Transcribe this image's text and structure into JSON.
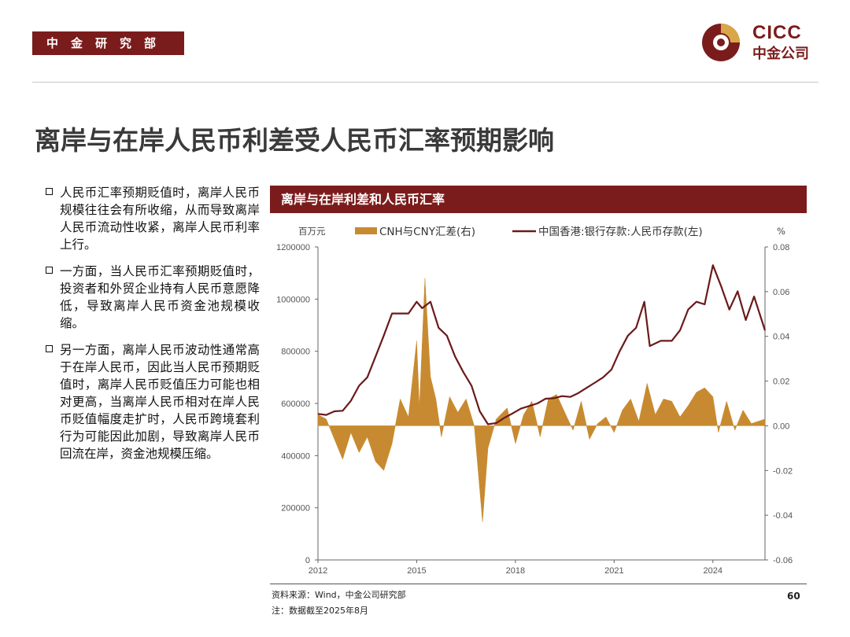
{
  "header": {
    "dept": "中金研究部",
    "logo_en": "CICC",
    "logo_cn": "中金公司"
  },
  "title": "离岸与在岸人民币利差受人民币汇率预期影响",
  "bullets": [
    "人民币汇率预期贬值时，离岸人民币规模往往会有所收缩，从而导致离岸人民币流动性收紧，离岸人民币利率上行。",
    "一方面，当人民币汇率预期贬值时，投资者和外贸企业持有人民币意愿降低，导致离岸人民币资金池规模收缩。",
    "另一方面，离岸人民币波动性通常高于在岸人民币，因此当人民币预期贬值时，离岸人民币贬值压力可能也相对更高，当离岸人民币相对在岸人民币贬值幅度走扩时，人民币跨境套利行为可能因此加剧，导致离岸人民币回流在岸，资金池规模压缩。"
  ],
  "chart_header": "离岸与在岸利差和人民币汇率",
  "colors": {
    "brand": "#7b1c1c",
    "line": "#6b1a1a",
    "area": "#c88a30"
  },
  "chart_data": {
    "type": "line",
    "x_type": "date",
    "left_unit": "百万元",
    "right_unit": "%",
    "y_left": {
      "ticks": [
        "0",
        "200000",
        "400000",
        "600000",
        "800000",
        "1000000",
        "1200000"
      ],
      "range": [
        0,
        1200000
      ]
    },
    "y_right": {
      "ticks": [
        "-0.06",
        "-0.04",
        "-0.02",
        "0.00",
        "0.02",
        "0.04",
        "0.06",
        "0.08"
      ],
      "range": [
        -0.06,
        0.08
      ]
    },
    "x": {
      "ticks": [
        "2012",
        "2015",
        "2018",
        "2021",
        "2024"
      ],
      "range": [
        "2012-01",
        "2025-08"
      ]
    },
    "grid": false,
    "legend": "top",
    "series": [
      {
        "name": "CNH与CNY汇差(右)",
        "kind": "area",
        "axis": "right",
        "points": [
          [
            "2012-01",
            0.005
          ],
          [
            "2012-04",
            0.003
          ],
          [
            "2012-07",
            -0.006
          ],
          [
            "2012-10",
            -0.015
          ],
          [
            "2013-01",
            -0.003
          ],
          [
            "2013-04",
            -0.012
          ],
          [
            "2013-07",
            -0.005
          ],
          [
            "2013-10",
            -0.016
          ],
          [
            "2014-01",
            -0.02
          ],
          [
            "2014-04",
            -0.008
          ],
          [
            "2014-07",
            0.012
          ],
          [
            "2014-10",
            0.004
          ],
          [
            "2015-01",
            0.038
          ],
          [
            "2015-02",
            0.008
          ],
          [
            "2015-04",
            0.066
          ],
          [
            "2015-06",
            0.022
          ],
          [
            "2015-08",
            0.012
          ],
          [
            "2015-10",
            -0.005
          ],
          [
            "2016-01",
            0.013
          ],
          [
            "2016-04",
            0.006
          ],
          [
            "2016-07",
            0.012
          ],
          [
            "2016-10",
            0.0
          ],
          [
            "2017-01",
            -0.043
          ],
          [
            "2017-03",
            -0.01
          ],
          [
            "2017-06",
            0.003
          ],
          [
            "2017-10",
            0.008
          ],
          [
            "2018-01",
            -0.008
          ],
          [
            "2018-04",
            0.005
          ],
          [
            "2018-07",
            0.011
          ],
          [
            "2018-10",
            -0.005
          ],
          [
            "2019-01",
            0.012
          ],
          [
            "2019-04",
            0.014
          ],
          [
            "2019-07",
            0.006
          ],
          [
            "2019-10",
            -0.002
          ],
          [
            "2020-01",
            0.011
          ],
          [
            "2020-04",
            -0.006
          ],
          [
            "2020-07",
            0.001
          ],
          [
            "2020-10",
            0.004
          ],
          [
            "2021-01",
            -0.003
          ],
          [
            "2021-04",
            0.007
          ],
          [
            "2021-07",
            0.012
          ],
          [
            "2021-10",
            0.002
          ],
          [
            "2022-01",
            0.019
          ],
          [
            "2022-04",
            0.005
          ],
          [
            "2022-07",
            0.012
          ],
          [
            "2022-10",
            0.011
          ],
          [
            "2023-01",
            0.004
          ],
          [
            "2023-04",
            0.009
          ],
          [
            "2023-07",
            0.015
          ],
          [
            "2023-10",
            0.017
          ],
          [
            "2024-01",
            0.013
          ],
          [
            "2024-03",
            -0.003
          ],
          [
            "2024-06",
            0.011
          ],
          [
            "2024-09",
            -0.002
          ],
          [
            "2024-12",
            0.007
          ],
          [
            "2025-03",
            0.001
          ],
          [
            "2025-08",
            0.003
          ]
        ]
      },
      {
        "name": "中国香港:银行存款:人民币存款(左)",
        "kind": "line",
        "axis": "left",
        "points": [
          [
            "2012-01",
            560000
          ],
          [
            "2012-04",
            556000
          ],
          [
            "2012-07",
            570000
          ],
          [
            "2012-10",
            572000
          ],
          [
            "2013-01",
            610000
          ],
          [
            "2013-04",
            668000
          ],
          [
            "2013-07",
            700000
          ],
          [
            "2013-10",
            780000
          ],
          [
            "2014-01",
            860000
          ],
          [
            "2014-04",
            945000
          ],
          [
            "2014-07",
            945000
          ],
          [
            "2014-10",
            945000
          ],
          [
            "2015-01",
            990000
          ],
          [
            "2015-03",
            965000
          ],
          [
            "2015-06",
            990000
          ],
          [
            "2015-09",
            890000
          ],
          [
            "2015-12",
            860000
          ],
          [
            "2016-03",
            780000
          ],
          [
            "2016-06",
            720000
          ],
          [
            "2016-09",
            668000
          ],
          [
            "2016-12",
            570000
          ],
          [
            "2017-03",
            520000
          ],
          [
            "2017-06",
            525000
          ],
          [
            "2017-09",
            545000
          ],
          [
            "2017-12",
            562000
          ],
          [
            "2018-03",
            580000
          ],
          [
            "2018-06",
            590000
          ],
          [
            "2018-09",
            600000
          ],
          [
            "2018-12",
            618000
          ],
          [
            "2019-03",
            620000
          ],
          [
            "2019-06",
            628000
          ],
          [
            "2019-09",
            625000
          ],
          [
            "2019-12",
            640000
          ],
          [
            "2020-03",
            660000
          ],
          [
            "2020-06",
            680000
          ],
          [
            "2020-09",
            700000
          ],
          [
            "2020-12",
            730000
          ],
          [
            "2021-03",
            800000
          ],
          [
            "2021-06",
            860000
          ],
          [
            "2021-09",
            890000
          ],
          [
            "2021-12",
            990000
          ],
          [
            "2022-02",
            820000
          ],
          [
            "2022-06",
            840000
          ],
          [
            "2022-10",
            840000
          ],
          [
            "2023-01",
            880000
          ],
          [
            "2023-04",
            960000
          ],
          [
            "2023-07",
            990000
          ],
          [
            "2023-10",
            980000
          ],
          [
            "2024-01",
            1130000
          ],
          [
            "2024-04",
            1050000
          ],
          [
            "2024-07",
            960000
          ],
          [
            "2024-10",
            1030000
          ],
          [
            "2025-01",
            920000
          ],
          [
            "2025-04",
            1010000
          ],
          [
            "2025-08",
            880000
          ]
        ]
      }
    ]
  },
  "source": "资料来源：Wind，中金公司研究部",
  "note": "注：数据截至2025年8月",
  "page_number": "60"
}
